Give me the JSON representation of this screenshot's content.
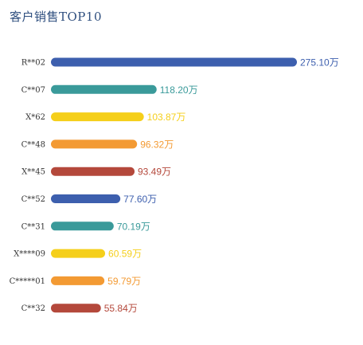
{
  "chart_data": {
    "type": "bar",
    "orientation": "horizontal",
    "title": "客户销售TOP10",
    "unit": "万",
    "categories": [
      "R**02",
      "C**07",
      "X*62",
      "C**48",
      "X**45",
      "C**52",
      "C**31",
      "X****09",
      "C*****01",
      "C**32"
    ],
    "values": [
      275.1,
      118.2,
      103.87,
      96.32,
      93.49,
      77.6,
      70.19,
      60.59,
      59.79,
      55.84
    ],
    "value_labels": [
      "275.10万",
      "118.20万",
      "103.87万",
      "96.32万",
      "93.49万",
      "77.60万",
      "70.19万",
      "60.59万",
      "59.79万",
      "55.84万"
    ],
    "colors": [
      "#3d5fae",
      "#3a9a9a",
      "#f5cf1a",
      "#f39a33",
      "#b4483b",
      "#3d5fae",
      "#3a9a9a",
      "#f5cf1a",
      "#f39a33",
      "#b4483b"
    ],
    "grid": false,
    "legend": "none"
  }
}
